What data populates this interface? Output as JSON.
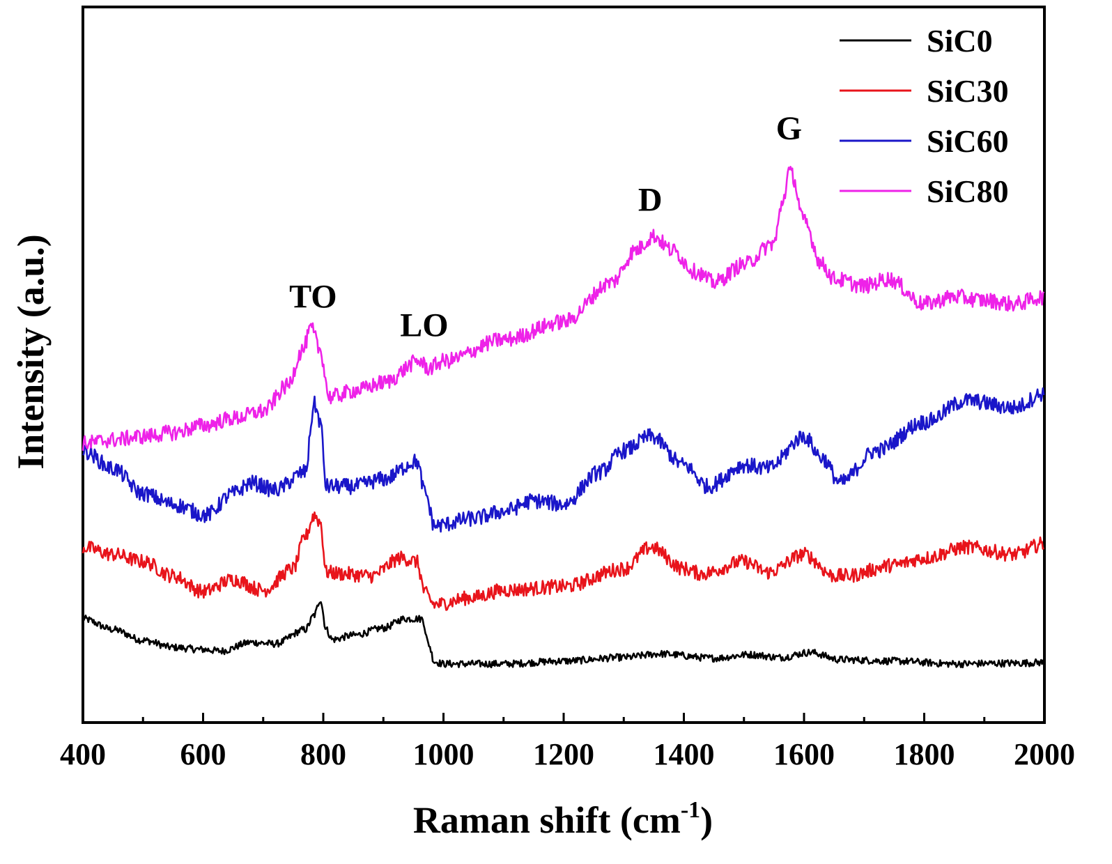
{
  "chart_data": {
    "type": "line",
    "xlabel": "Raman shift (cm",
    "xlabel_sup": "-1",
    "xlabel_close": ")",
    "ylabel": "Intensity (a.u.)",
    "xlim": [
      400,
      2000
    ],
    "ylim": [
      0,
      100
    ],
    "x_ticks": [
      400,
      600,
      800,
      1000,
      1200,
      1400,
      1600,
      1800,
      2000
    ],
    "x_tick_labels": [
      "400",
      "600",
      "800",
      "1000",
      "1200",
      "1400",
      "1600",
      "1800",
      "2000"
    ],
    "grid": false,
    "legend_position": "top-right",
    "series": [
      {
        "name": "SiC0",
        "color": "#000000",
        "noise": 0.5,
        "points": [
          [
            400,
            14.5
          ],
          [
            450,
            13
          ],
          [
            500,
            11.5
          ],
          [
            550,
            10.5
          ],
          [
            600,
            10.2
          ],
          [
            630,
            10
          ],
          [
            680,
            11.2
          ],
          [
            720,
            11
          ],
          [
            770,
            13
          ],
          [
            785,
            15
          ],
          [
            795,
            17.2
          ],
          [
            805,
            13
          ],
          [
            815,
            11.6
          ],
          [
            850,
            12.2
          ],
          [
            900,
            13.2
          ],
          [
            935,
            14.5
          ],
          [
            965,
            14.5
          ],
          [
            975,
            11
          ],
          [
            985,
            8.5
          ],
          [
            1000,
            8.2
          ],
          [
            1100,
            8.2
          ],
          [
            1200,
            8.6
          ],
          [
            1300,
            9.1
          ],
          [
            1360,
            9.6
          ],
          [
            1450,
            9.0
          ],
          [
            1510,
            9.5
          ],
          [
            1560,
            9.1
          ],
          [
            1610,
            9.8
          ],
          [
            1660,
            8.8
          ],
          [
            1750,
            8.6
          ],
          [
            1850,
            8.2
          ],
          [
            1950,
            8.3
          ],
          [
            2000,
            8.4
          ]
        ]
      },
      {
        "name": "SiC30",
        "color": "#e8141b",
        "noise": 1.0,
        "points": [
          [
            400,
            24.5
          ],
          [
            450,
            23.5
          ],
          [
            500,
            22.5
          ],
          [
            550,
            20.5
          ],
          [
            600,
            18.3
          ],
          [
            650,
            20
          ],
          [
            700,
            18.5
          ],
          [
            750,
            21.5
          ],
          [
            770,
            26
          ],
          [
            785,
            29
          ],
          [
            795,
            28
          ],
          [
            805,
            21
          ],
          [
            830,
            20.8
          ],
          [
            880,
            20.5
          ],
          [
            930,
            23
          ],
          [
            955,
            22.5
          ],
          [
            970,
            18
          ],
          [
            985,
            16.5
          ],
          [
            1050,
            17.5
          ],
          [
            1100,
            18.5
          ],
          [
            1200,
            19
          ],
          [
            1300,
            21.5
          ],
          [
            1345,
            24.5
          ],
          [
            1400,
            21.5
          ],
          [
            1430,
            20.8
          ],
          [
            1500,
            22.5
          ],
          [
            1540,
            21
          ],
          [
            1600,
            23.5
          ],
          [
            1650,
            20.5
          ],
          [
            1670,
            20.5
          ],
          [
            1750,
            22
          ],
          [
            1800,
            23
          ],
          [
            1870,
            24.5
          ],
          [
            1950,
            23.5
          ],
          [
            2000,
            25
          ]
        ]
      },
      {
        "name": "SiC60",
        "color": "#1a16c9",
        "noise": 1.1,
        "points": [
          [
            400,
            38
          ],
          [
            450,
            35.5
          ],
          [
            500,
            32
          ],
          [
            550,
            30.5
          ],
          [
            605,
            29
          ],
          [
            650,
            32
          ],
          [
            680,
            33.5
          ],
          [
            720,
            32.5
          ],
          [
            770,
            35
          ],
          [
            785,
            44.5
          ],
          [
            795,
            42
          ],
          [
            805,
            33
          ],
          [
            850,
            33
          ],
          [
            900,
            34
          ],
          [
            955,
            36.5
          ],
          [
            970,
            32
          ],
          [
            985,
            27.5
          ],
          [
            1050,
            28.5
          ],
          [
            1100,
            29.5
          ],
          [
            1150,
            31
          ],
          [
            1200,
            30.5
          ],
          [
            1260,
            35
          ],
          [
            1300,
            38
          ],
          [
            1345,
            40
          ],
          [
            1400,
            36
          ],
          [
            1440,
            33
          ],
          [
            1500,
            36
          ],
          [
            1540,
            35.5
          ],
          [
            1600,
            40
          ],
          [
            1630,
            37
          ],
          [
            1660,
            33.5
          ],
          [
            1720,
            38
          ],
          [
            1800,
            42
          ],
          [
            1870,
            45
          ],
          [
            1950,
            44
          ],
          [
            2000,
            46
          ]
        ]
      },
      {
        "name": "SiC80",
        "color": "#ee22e8",
        "noise": 1.1,
        "points": [
          [
            400,
            39
          ],
          [
            450,
            39.5
          ],
          [
            500,
            40
          ],
          [
            550,
            40.5
          ],
          [
            600,
            41.5
          ],
          [
            650,
            42.5
          ],
          [
            700,
            43.5
          ],
          [
            740,
            47
          ],
          [
            765,
            52
          ],
          [
            780,
            55
          ],
          [
            795,
            52
          ],
          [
            810,
            45.5
          ],
          [
            860,
            46.5
          ],
          [
            900,
            47.5
          ],
          [
            960,
            50.5
          ],
          [
            975,
            49.5
          ],
          [
            1000,
            50.5
          ],
          [
            1100,
            53.5
          ],
          [
            1200,
            56
          ],
          [
            1280,
            61.5
          ],
          [
            1320,
            66
          ],
          [
            1350,
            68
          ],
          [
            1380,
            66
          ],
          [
            1420,
            63
          ],
          [
            1450,
            61.5
          ],
          [
            1500,
            64
          ],
          [
            1550,
            67
          ],
          [
            1565,
            73
          ],
          [
            1575,
            77
          ],
          [
            1580,
            76.5
          ],
          [
            1600,
            70
          ],
          [
            1630,
            64
          ],
          [
            1650,
            62
          ],
          [
            1700,
            61
          ],
          [
            1740,
            62
          ],
          [
            1800,
            58.5
          ],
          [
            1850,
            59.5
          ],
          [
            1900,
            59
          ],
          [
            1950,
            58.5
          ],
          [
            2000,
            59.5
          ]
        ]
      }
    ],
    "annotations": [
      {
        "text": "TO",
        "x": 783,
        "y": 58
      },
      {
        "text": "LO",
        "x": 968,
        "y": 54
      },
      {
        "text": "D",
        "x": 1344,
        "y": 71.5
      },
      {
        "text": "G",
        "x": 1575,
        "y": 81.5
      }
    ]
  }
}
